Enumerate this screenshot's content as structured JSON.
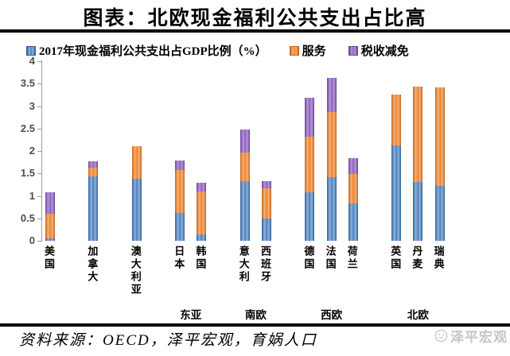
{
  "page": {
    "title": "图表：北欧现金福利公共支出占比高",
    "source_note": "资料来源：OECD，泽平宏观，育娲人口",
    "watermark_label": "泽平宏观"
  },
  "colors": {
    "axis": "#9b9b9b",
    "tick_label": "#4d4d4d",
    "divider": "#000000",
    "watermark": "#c6c6c6"
  },
  "chart_data": {
    "type": "bar",
    "stacked": true,
    "grid": false,
    "legend_position": "top",
    "ylim": [
      0,
      4
    ],
    "yticks": [
      0,
      0.5,
      1,
      1.5,
      2,
      2.5,
      3,
      3.5,
      4
    ],
    "categories": [
      "美国",
      "加拿大",
      "澳大利亚",
      "日本",
      "韩国",
      "意大利",
      "西班牙",
      "德国",
      "法国",
      "荷兰",
      "英国",
      "丹麦",
      "瑞典"
    ],
    "clusters": [
      {
        "label": "",
        "categories": [
          "美国"
        ]
      },
      {
        "label": "",
        "categories": [
          "加拿大"
        ]
      },
      {
        "label": "",
        "categories": [
          "澳大利亚"
        ]
      },
      {
        "label": "东亚",
        "categories": [
          "日本",
          "韩国"
        ]
      },
      {
        "label": "南欧",
        "categories": [
          "意大利",
          "西班牙"
        ]
      },
      {
        "label": "西欧",
        "categories": [
          "德国",
          "法国",
          "荷兰"
        ]
      },
      {
        "label": "北欧",
        "categories": [
          "英国",
          "丹麦",
          "瑞典"
        ]
      }
    ],
    "series": [
      {
        "name": "2017年现金福利公共支出占GDP比例（%）",
        "color": "#4F81BD",
        "color_light": "#8FB2DA",
        "color_dark": "#31609B",
        "values": [
          0.06,
          1.43,
          1.38,
          0.62,
          0.14,
          1.32,
          0.49,
          1.08,
          1.41,
          0.83,
          2.12,
          1.31,
          1.23
        ]
      },
      {
        "name": "服务",
        "color": "#F0832C",
        "color_light": "#F8B078",
        "color_dark": "#C9661B",
        "values": [
          0.55,
          0.2,
          0.72,
          0.96,
          0.95,
          0.65,
          0.67,
          1.24,
          1.46,
          0.66,
          1.13,
          2.12,
          2.19
        ]
      },
      {
        "name": "税收减免",
        "color": "#8C64BE",
        "color_light": "#B598D8",
        "color_dark": "#6B4399",
        "values": [
          0.47,
          0.14,
          0,
          0.21,
          0.21,
          0.5,
          0.16,
          0.86,
          0.75,
          0.35,
          0,
          0,
          0
        ]
      }
    ]
  }
}
